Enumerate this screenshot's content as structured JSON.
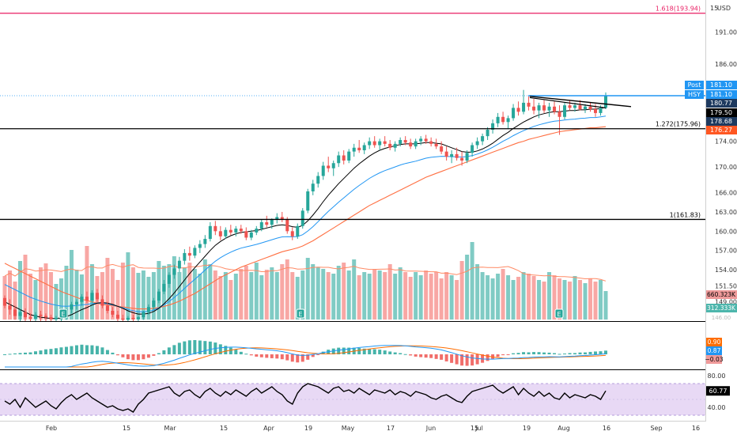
{
  "chart_data": {
    "type": "candlestick",
    "symbol": "HSY",
    "currency": "USD",
    "price_axis_labels": [
      "191.00",
      "186.00",
      "180.77",
      "179.50",
      "178.68",
      "176.27",
      "174.00",
      "170.00",
      "166.00",
      "163.00",
      "160.00",
      "157.00",
      "154.00",
      "151.50",
      "149.00",
      "146.00"
    ],
    "axis_tick_labels": {
      "price": [
        "191.00",
        "186.00",
        "174.00",
        "170.00",
        "166.00",
        "163.00",
        "160.00",
        "157.00",
        "154.00",
        "151.50",
        "149.00",
        "146.00"
      ],
      "time": [
        "Feb",
        "15",
        "Mar",
        "15",
        "Apr",
        "19",
        "May",
        "17",
        "Jun",
        "15",
        "Jul",
        "19",
        "Aug",
        "16",
        "Sep",
        "16"
      ],
      "rsi": [
        "80.00",
        "40.00"
      ]
    },
    "currency_label": "USD",
    "ylim": [
      146,
      196
    ],
    "fib_levels": [
      {
        "label": "1.618(193.94)",
        "value": 193.94,
        "color": "#e91e63"
      },
      {
        "label": "1.272(175.96)",
        "value": 175.96,
        "color": "#000000"
      },
      {
        "label": "1(161.83)",
        "value": 161.83,
        "color": "#000000"
      }
    ],
    "price_labels": [
      {
        "prefix": "Post",
        "text": "181.10",
        "value": 181.1,
        "bg": "#2196f3",
        "fg": "#ffffff"
      },
      {
        "prefix": "HSY",
        "text": "181.10",
        "value": 181.1,
        "bg": "#2196f3",
        "fg": "#ffffff"
      },
      {
        "text": "180.77",
        "value": 180.77,
        "bg": "#1e3a5f",
        "fg": "#ffffff"
      },
      {
        "text": "179.50",
        "value": 179.5,
        "bg": "#000000",
        "fg": "#ffffff"
      },
      {
        "text": "178.68",
        "value": 178.68,
        "bg": "#1e3a5f",
        "fg": "#ffffff"
      },
      {
        "text": "176.27",
        "value": 176.27,
        "bg": "#ff5722",
        "fg": "#ffffff"
      }
    ],
    "candles": [
      {
        "o": 149.6,
        "h": 150.0,
        "l": 148.0,
        "c": 148.4
      },
      {
        "o": 148.4,
        "h": 149.4,
        "l": 147.0,
        "c": 147.8
      },
      {
        "o": 147.8,
        "h": 148.4,
        "l": 146.2,
        "c": 146.8
      },
      {
        "o": 146.8,
        "h": 147.8,
        "l": 146.0,
        "c": 147.4
      },
      {
        "o": 147.4,
        "h": 148.0,
        "l": 146.0,
        "c": 146.6
      },
      {
        "o": 146.6,
        "h": 147.2,
        "l": 146.0,
        "c": 146.4
      },
      {
        "o": 146.4,
        "h": 147.4,
        "l": 146.0,
        "c": 147.0
      },
      {
        "o": 147.0,
        "h": 147.6,
        "l": 146.0,
        "c": 146.8
      },
      {
        "o": 146.8,
        "h": 147.2,
        "l": 146.0,
        "c": 146.6
      },
      {
        "o": 146.6,
        "h": 147.0,
        "l": 146.0,
        "c": 146.3
      },
      {
        "o": 146.3,
        "h": 146.8,
        "l": 146.0,
        "c": 146.5
      },
      {
        "o": 146.5,
        "h": 147.0,
        "l": 146.0,
        "c": 146.8
      },
      {
        "o": 146.8,
        "h": 148.0,
        "l": 146.2,
        "c": 147.8
      },
      {
        "o": 147.8,
        "h": 149.0,
        "l": 147.2,
        "c": 148.6
      },
      {
        "o": 148.6,
        "h": 149.4,
        "l": 147.8,
        "c": 149.0
      },
      {
        "o": 149.0,
        "h": 150.2,
        "l": 148.4,
        "c": 149.8
      },
      {
        "o": 149.8,
        "h": 150.6,
        "l": 148.8,
        "c": 149.2
      },
      {
        "o": 149.2,
        "h": 150.8,
        "l": 148.8,
        "c": 150.4
      },
      {
        "o": 150.4,
        "h": 151.0,
        "l": 149.0,
        "c": 149.4
      },
      {
        "o": 149.4,
        "h": 150.0,
        "l": 148.0,
        "c": 148.4
      },
      {
        "o": 148.4,
        "h": 149.0,
        "l": 147.2,
        "c": 147.6
      },
      {
        "o": 147.6,
        "h": 148.2,
        "l": 146.6,
        "c": 147.0
      },
      {
        "o": 147.0,
        "h": 147.6,
        "l": 146.0,
        "c": 146.4
      },
      {
        "o": 146.4,
        "h": 147.0,
        "l": 146.0,
        "c": 146.2
      },
      {
        "o": 146.2,
        "h": 146.8,
        "l": 146.0,
        "c": 146.5
      },
      {
        "o": 146.5,
        "h": 147.0,
        "l": 146.0,
        "c": 146.3
      },
      {
        "o": 146.3,
        "h": 146.8,
        "l": 146.0,
        "c": 146.6
      },
      {
        "o": 146.6,
        "h": 147.6,
        "l": 146.2,
        "c": 147.4
      },
      {
        "o": 147.4,
        "h": 148.6,
        "l": 147.0,
        "c": 148.2
      },
      {
        "o": 148.2,
        "h": 149.6,
        "l": 147.8,
        "c": 149.2
      },
      {
        "o": 149.2,
        "h": 151.0,
        "l": 148.8,
        "c": 150.6
      },
      {
        "o": 150.6,
        "h": 152.4,
        "l": 150.2,
        "c": 151.8
      },
      {
        "o": 151.8,
        "h": 153.6,
        "l": 151.2,
        "c": 153.2
      },
      {
        "o": 153.2,
        "h": 154.8,
        "l": 152.6,
        "c": 154.2
      },
      {
        "o": 154.2,
        "h": 156.0,
        "l": 153.6,
        "c": 155.4
      },
      {
        "o": 155.4,
        "h": 157.2,
        "l": 154.8,
        "c": 156.6
      },
      {
        "o": 156.6,
        "h": 157.6,
        "l": 155.4,
        "c": 156.2
      },
      {
        "o": 156.2,
        "h": 157.8,
        "l": 155.8,
        "c": 157.4
      },
      {
        "o": 157.4,
        "h": 158.6,
        "l": 156.6,
        "c": 158.0
      },
      {
        "o": 158.0,
        "h": 159.4,
        "l": 157.4,
        "c": 158.8
      },
      {
        "o": 158.8,
        "h": 161.4,
        "l": 158.4,
        "c": 160.8
      },
      {
        "o": 160.8,
        "h": 161.6,
        "l": 159.4,
        "c": 160.0
      },
      {
        "o": 160.0,
        "h": 160.8,
        "l": 158.6,
        "c": 159.2
      },
      {
        "o": 159.2,
        "h": 160.6,
        "l": 158.8,
        "c": 160.2
      },
      {
        "o": 160.2,
        "h": 161.0,
        "l": 159.4,
        "c": 159.8
      },
      {
        "o": 159.8,
        "h": 160.8,
        "l": 159.2,
        "c": 160.4
      },
      {
        "o": 160.4,
        "h": 161.0,
        "l": 159.6,
        "c": 160.0
      },
      {
        "o": 160.0,
        "h": 160.6,
        "l": 158.6,
        "c": 159.0
      },
      {
        "o": 159.0,
        "h": 160.2,
        "l": 158.6,
        "c": 159.8
      },
      {
        "o": 159.8,
        "h": 160.8,
        "l": 159.4,
        "c": 160.4
      },
      {
        "o": 160.4,
        "h": 161.8,
        "l": 160.0,
        "c": 161.4
      },
      {
        "o": 161.4,
        "h": 162.4,
        "l": 160.6,
        "c": 161.0
      },
      {
        "o": 161.0,
        "h": 162.0,
        "l": 160.4,
        "c": 161.8
      },
      {
        "o": 161.8,
        "h": 162.8,
        "l": 161.2,
        "c": 162.2
      },
      {
        "o": 162.2,
        "h": 163.0,
        "l": 161.4,
        "c": 161.8
      },
      {
        "o": 161.8,
        "h": 162.2,
        "l": 159.6,
        "c": 160.0
      },
      {
        "o": 160.0,
        "h": 160.6,
        "l": 158.6,
        "c": 159.2
      },
      {
        "o": 159.2,
        "h": 161.2,
        "l": 158.8,
        "c": 160.8
      },
      {
        "o": 160.8,
        "h": 163.6,
        "l": 160.4,
        "c": 163.2
      },
      {
        "o": 163.2,
        "h": 166.6,
        "l": 162.8,
        "c": 166.2
      },
      {
        "o": 166.2,
        "h": 168.0,
        "l": 165.6,
        "c": 167.4
      },
      {
        "o": 167.4,
        "h": 169.2,
        "l": 166.8,
        "c": 168.6
      },
      {
        "o": 168.6,
        "h": 170.8,
        "l": 168.0,
        "c": 170.2
      },
      {
        "o": 170.2,
        "h": 171.6,
        "l": 169.2,
        "c": 169.8
      },
      {
        "o": 169.8,
        "h": 171.0,
        "l": 168.6,
        "c": 170.6
      },
      {
        "o": 170.6,
        "h": 172.4,
        "l": 170.0,
        "c": 171.8
      },
      {
        "o": 171.8,
        "h": 172.6,
        "l": 170.4,
        "c": 171.0
      },
      {
        "o": 171.0,
        "h": 172.8,
        "l": 170.6,
        "c": 172.4
      },
      {
        "o": 172.4,
        "h": 173.6,
        "l": 171.6,
        "c": 173.0
      },
      {
        "o": 173.0,
        "h": 174.2,
        "l": 172.2,
        "c": 172.6
      },
      {
        "o": 172.6,
        "h": 173.8,
        "l": 172.0,
        "c": 173.4
      },
      {
        "o": 173.4,
        "h": 174.6,
        "l": 172.8,
        "c": 174.0
      },
      {
        "o": 174.0,
        "h": 174.8,
        "l": 173.0,
        "c": 173.4
      },
      {
        "o": 173.4,
        "h": 174.4,
        "l": 172.6,
        "c": 174.0
      },
      {
        "o": 174.0,
        "h": 174.8,
        "l": 173.2,
        "c": 173.6
      },
      {
        "o": 173.6,
        "h": 174.2,
        "l": 172.6,
        "c": 173.0
      },
      {
        "o": 173.0,
        "h": 174.0,
        "l": 172.4,
        "c": 173.6
      },
      {
        "o": 173.6,
        "h": 174.6,
        "l": 173.2,
        "c": 174.2
      },
      {
        "o": 174.2,
        "h": 174.8,
        "l": 173.4,
        "c": 173.8
      },
      {
        "o": 173.8,
        "h": 174.4,
        "l": 172.8,
        "c": 173.2
      },
      {
        "o": 173.2,
        "h": 174.4,
        "l": 172.8,
        "c": 174.0
      },
      {
        "o": 174.0,
        "h": 174.8,
        "l": 173.4,
        "c": 174.4
      },
      {
        "o": 174.4,
        "h": 175.0,
        "l": 173.6,
        "c": 174.0
      },
      {
        "o": 174.0,
        "h": 174.6,
        "l": 173.2,
        "c": 173.6
      },
      {
        "o": 173.6,
        "h": 174.4,
        "l": 172.8,
        "c": 173.2
      },
      {
        "o": 173.2,
        "h": 174.0,
        "l": 172.0,
        "c": 172.4
      },
      {
        "o": 172.4,
        "h": 173.2,
        "l": 171.0,
        "c": 171.6
      },
      {
        "o": 171.6,
        "h": 172.6,
        "l": 170.6,
        "c": 172.0
      },
      {
        "o": 172.0,
        "h": 173.0,
        "l": 171.0,
        "c": 171.4
      },
      {
        "o": 171.4,
        "h": 172.4,
        "l": 170.2,
        "c": 171.0
      },
      {
        "o": 171.0,
        "h": 172.6,
        "l": 170.6,
        "c": 172.2
      },
      {
        "o": 172.2,
        "h": 173.8,
        "l": 171.6,
        "c": 173.4
      },
      {
        "o": 173.4,
        "h": 174.6,
        "l": 172.8,
        "c": 174.0
      },
      {
        "o": 174.0,
        "h": 175.2,
        "l": 173.4,
        "c": 174.8
      },
      {
        "o": 174.8,
        "h": 176.2,
        "l": 174.2,
        "c": 175.8
      },
      {
        "o": 175.8,
        "h": 177.4,
        "l": 175.2,
        "c": 176.8
      },
      {
        "o": 176.8,
        "h": 178.4,
        "l": 176.2,
        "c": 177.8
      },
      {
        "o": 177.8,
        "h": 178.6,
        "l": 176.6,
        "c": 177.0
      },
      {
        "o": 177.0,
        "h": 178.0,
        "l": 176.0,
        "c": 177.6
      },
      {
        "o": 177.6,
        "h": 179.8,
        "l": 177.2,
        "c": 179.2
      },
      {
        "o": 179.2,
        "h": 180.2,
        "l": 178.0,
        "c": 178.6
      },
      {
        "o": 178.6,
        "h": 182.0,
        "l": 178.2,
        "c": 180.0
      },
      {
        "o": 180.0,
        "h": 181.0,
        "l": 178.8,
        "c": 179.4
      },
      {
        "o": 179.4,
        "h": 180.6,
        "l": 178.2,
        "c": 178.8
      },
      {
        "o": 178.8,
        "h": 180.0,
        "l": 177.6,
        "c": 179.6
      },
      {
        "o": 179.6,
        "h": 180.4,
        "l": 178.4,
        "c": 178.8
      },
      {
        "o": 178.8,
        "h": 180.0,
        "l": 177.8,
        "c": 179.4
      },
      {
        "o": 179.4,
        "h": 180.2,
        "l": 178.2,
        "c": 178.6
      },
      {
        "o": 178.6,
        "h": 179.6,
        "l": 175.0,
        "c": 177.8
      },
      {
        "o": 177.8,
        "h": 180.0,
        "l": 177.4,
        "c": 179.6
      },
      {
        "o": 179.6,
        "h": 180.4,
        "l": 178.8,
        "c": 179.2
      },
      {
        "o": 179.2,
        "h": 180.0,
        "l": 178.6,
        "c": 179.6
      },
      {
        "o": 179.6,
        "h": 180.4,
        "l": 178.8,
        "c": 179.0
      },
      {
        "o": 179.0,
        "h": 179.8,
        "l": 178.4,
        "c": 179.4
      },
      {
        "o": 179.4,
        "h": 180.0,
        "l": 178.6,
        "c": 179.0
      },
      {
        "o": 179.0,
        "h": 179.8,
        "l": 177.8,
        "c": 178.4
      },
      {
        "o": 178.4,
        "h": 179.6,
        "l": 178.0,
        "c": 179.2
      },
      {
        "o": 179.2,
        "h": 181.6,
        "l": 179.0,
        "c": 181.1
      }
    ],
    "sma_fast": [
      149.0,
      148.6,
      148.2,
      147.8,
      147.4,
      147.0,
      146.8,
      146.6,
      146.5,
      146.4,
      146.4,
      146.5,
      146.7,
      147.0,
      147.4,
      147.8,
      148.1,
      148.5,
      148.8,
      148.9,
      148.8,
      148.6,
      148.3,
      148.0,
      147.6,
      147.3,
      147.1,
      147.1,
      147.2,
      147.5,
      148.0,
      148.7,
      149.5,
      150.4,
      151.4,
      152.4,
      153.4,
      154.3,
      155.2,
      156.1,
      157.0,
      157.8,
      158.4,
      158.9,
      159.3,
      159.6,
      159.8,
      159.9,
      160.0,
      160.1,
      160.3,
      160.5,
      160.7,
      160.9,
      161.0,
      160.9,
      160.7,
      160.6,
      160.9,
      161.6,
      162.5,
      163.5,
      164.6,
      165.6,
      166.5,
      167.4,
      168.2,
      169.0,
      169.8,
      170.5,
      171.1,
      171.7,
      172.2,
      172.6,
      172.9,
      173.1,
      173.3,
      173.5,
      173.6,
      173.6,
      173.6,
      173.7,
      173.8,
      173.8,
      173.7,
      173.6,
      173.3,
      173.0,
      172.7,
      172.4,
      172.3,
      172.3,
      172.5,
      172.8,
      173.2,
      173.7,
      174.3,
      174.9,
      175.4,
      176.0,
      176.5,
      177.0,
      177.4,
      177.8,
      178.1,
      178.3,
      178.5,
      178.6,
      178.6,
      178.7,
      178.8,
      178.8,
      178.9,
      178.9,
      179.0,
      179.0,
      179.1,
      179.3
    ],
    "sma_slow": [
      155.0,
      154.6,
      154.2,
      153.8,
      153.4,
      153.0,
      152.6,
      152.2,
      151.8,
      151.4,
      151.0,
      150.6,
      150.3,
      150.0,
      149.7,
      149.4,
      149.2,
      149.0,
      148.8,
      148.6,
      148.5,
      148.4,
      148.3,
      148.2,
      148.1,
      148.0,
      147.9,
      147.9,
      147.9,
      148.0,
      148.1,
      148.3,
      148.5,
      148.8,
      149.1,
      149.5,
      149.9,
      150.3,
      150.8,
      151.3,
      151.8,
      152.3,
      152.8,
      153.2,
      153.6,
      154.0,
      154.4,
      154.7,
      155.0,
      155.3,
      155.6,
      155.9,
      156.2,
      156.5,
      156.8,
      157.0,
      157.2,
      157.4,
      157.7,
      158.1,
      158.5,
      159.0,
      159.5,
      160.0,
      160.5,
      161.0,
      161.5,
      162.0,
      162.5,
      163.0,
      163.5,
      164.0,
      164.4,
      164.8,
      165.2,
      165.6,
      166.0,
      166.4,
      166.8,
      167.2,
      167.6,
      168.0,
      168.4,
      168.7,
      169.0,
      169.3,
      169.6,
      169.9,
      170.2,
      170.5,
      170.8,
      171.1,
      171.4,
      171.7,
      172.0,
      172.3,
      172.6,
      172.9,
      173.2,
      173.5,
      173.8,
      174.0,
      174.3,
      174.5,
      174.7,
      174.9,
      175.1,
      175.3,
      175.5,
      175.6,
      175.7,
      175.8,
      175.9,
      176.0,
      176.1,
      176.1,
      176.2,
      176.27
    ],
    "volumes": [
      0.55,
      0.62,
      0.48,
      0.74,
      0.82,
      0.58,
      0.5,
      0.66,
      0.71,
      0.6,
      0.45,
      0.52,
      0.68,
      0.88,
      0.63,
      0.57,
      0.93,
      0.7,
      0.55,
      0.6,
      0.78,
      0.64,
      0.5,
      0.72,
      0.85,
      0.66,
      0.59,
      0.62,
      0.54,
      0.6,
      0.74,
      0.68,
      0.7,
      0.8,
      0.6,
      0.66,
      0.72,
      0.64,
      0.58,
      0.76,
      0.7,
      0.62,
      0.55,
      0.6,
      0.5,
      0.58,
      0.64,
      0.68,
      0.6,
      0.72,
      0.56,
      0.63,
      0.66,
      0.6,
      0.7,
      0.76,
      0.6,
      0.54,
      0.62,
      0.78,
      0.7,
      0.66,
      0.64,
      0.6,
      0.58,
      0.68,
      0.72,
      0.62,
      0.76,
      0.56,
      0.6,
      0.58,
      0.64,
      0.62,
      0.6,
      0.7,
      0.58,
      0.66,
      0.6,
      0.54,
      0.6,
      0.56,
      0.62,
      0.58,
      0.6,
      0.52,
      0.6,
      0.56,
      0.5,
      0.74,
      0.82,
      0.98,
      0.7,
      0.6,
      0.56,
      0.52,
      0.58,
      0.64,
      0.56,
      0.5,
      0.54,
      0.6,
      0.58,
      0.55,
      0.5,
      0.48,
      0.6,
      0.56,
      0.52,
      0.5,
      0.48,
      0.55,
      0.5,
      0.46,
      0.52,
      0.48,
      0.5,
      0.36
    ],
    "volume_labels": [
      {
        "text": "660.323K",
        "bg": "#ef9a9a",
        "fg": "#000000"
      },
      {
        "text": "312.333K",
        "bg": "#4db6ac",
        "fg": "#ffffff"
      }
    ],
    "macd_labels": [
      {
        "text": "0.90",
        "bg": "#ff6d00",
        "fg": "#ffffff"
      },
      {
        "text": "0.87",
        "bg": "#2196f3",
        "fg": "#ffffff"
      },
      {
        "text": "−0.03",
        "bg": "#ef9a9a",
        "fg": "#000000"
      }
    ],
    "rsi_label": {
      "text": "60.77",
      "bg": "#000000",
      "fg": "#ffffff"
    },
    "rsi_values": [
      48,
      44,
      50,
      40,
      52,
      46,
      40,
      44,
      48,
      42,
      38,
      46,
      52,
      56,
      50,
      54,
      58,
      52,
      48,
      44,
      40,
      42,
      38,
      36,
      38,
      34,
      44,
      50,
      58,
      60,
      62,
      64,
      66,
      58,
      54,
      60,
      62,
      56,
      52,
      60,
      64,
      58,
      54,
      60,
      56,
      62,
      58,
      54,
      60,
      64,
      58,
      62,
      66,
      60,
      56,
      48,
      44,
      58,
      66,
      70,
      68,
      66,
      62,
      58,
      64,
      66,
      60,
      62,
      58,
      64,
      60,
      56,
      62,
      60,
      58,
      62,
      56,
      60,
      58,
      54,
      60,
      58,
      56,
      52,
      50,
      54,
      56,
      52,
      48,
      46,
      54,
      60,
      62,
      64,
      66,
      68,
      62,
      58,
      62,
      66,
      56,
      64,
      58,
      54,
      60,
      54,
      58,
      52,
      50,
      58,
      52,
      56,
      54,
      52,
      56,
      54,
      50,
      60.77
    ]
  },
  "colors": {
    "bull": "#26a69a",
    "bear": "#ef5350",
    "sma_fast": "#000000",
    "sma_slow": "#ff7043",
    "sma_mid": "#2196f3"
  }
}
